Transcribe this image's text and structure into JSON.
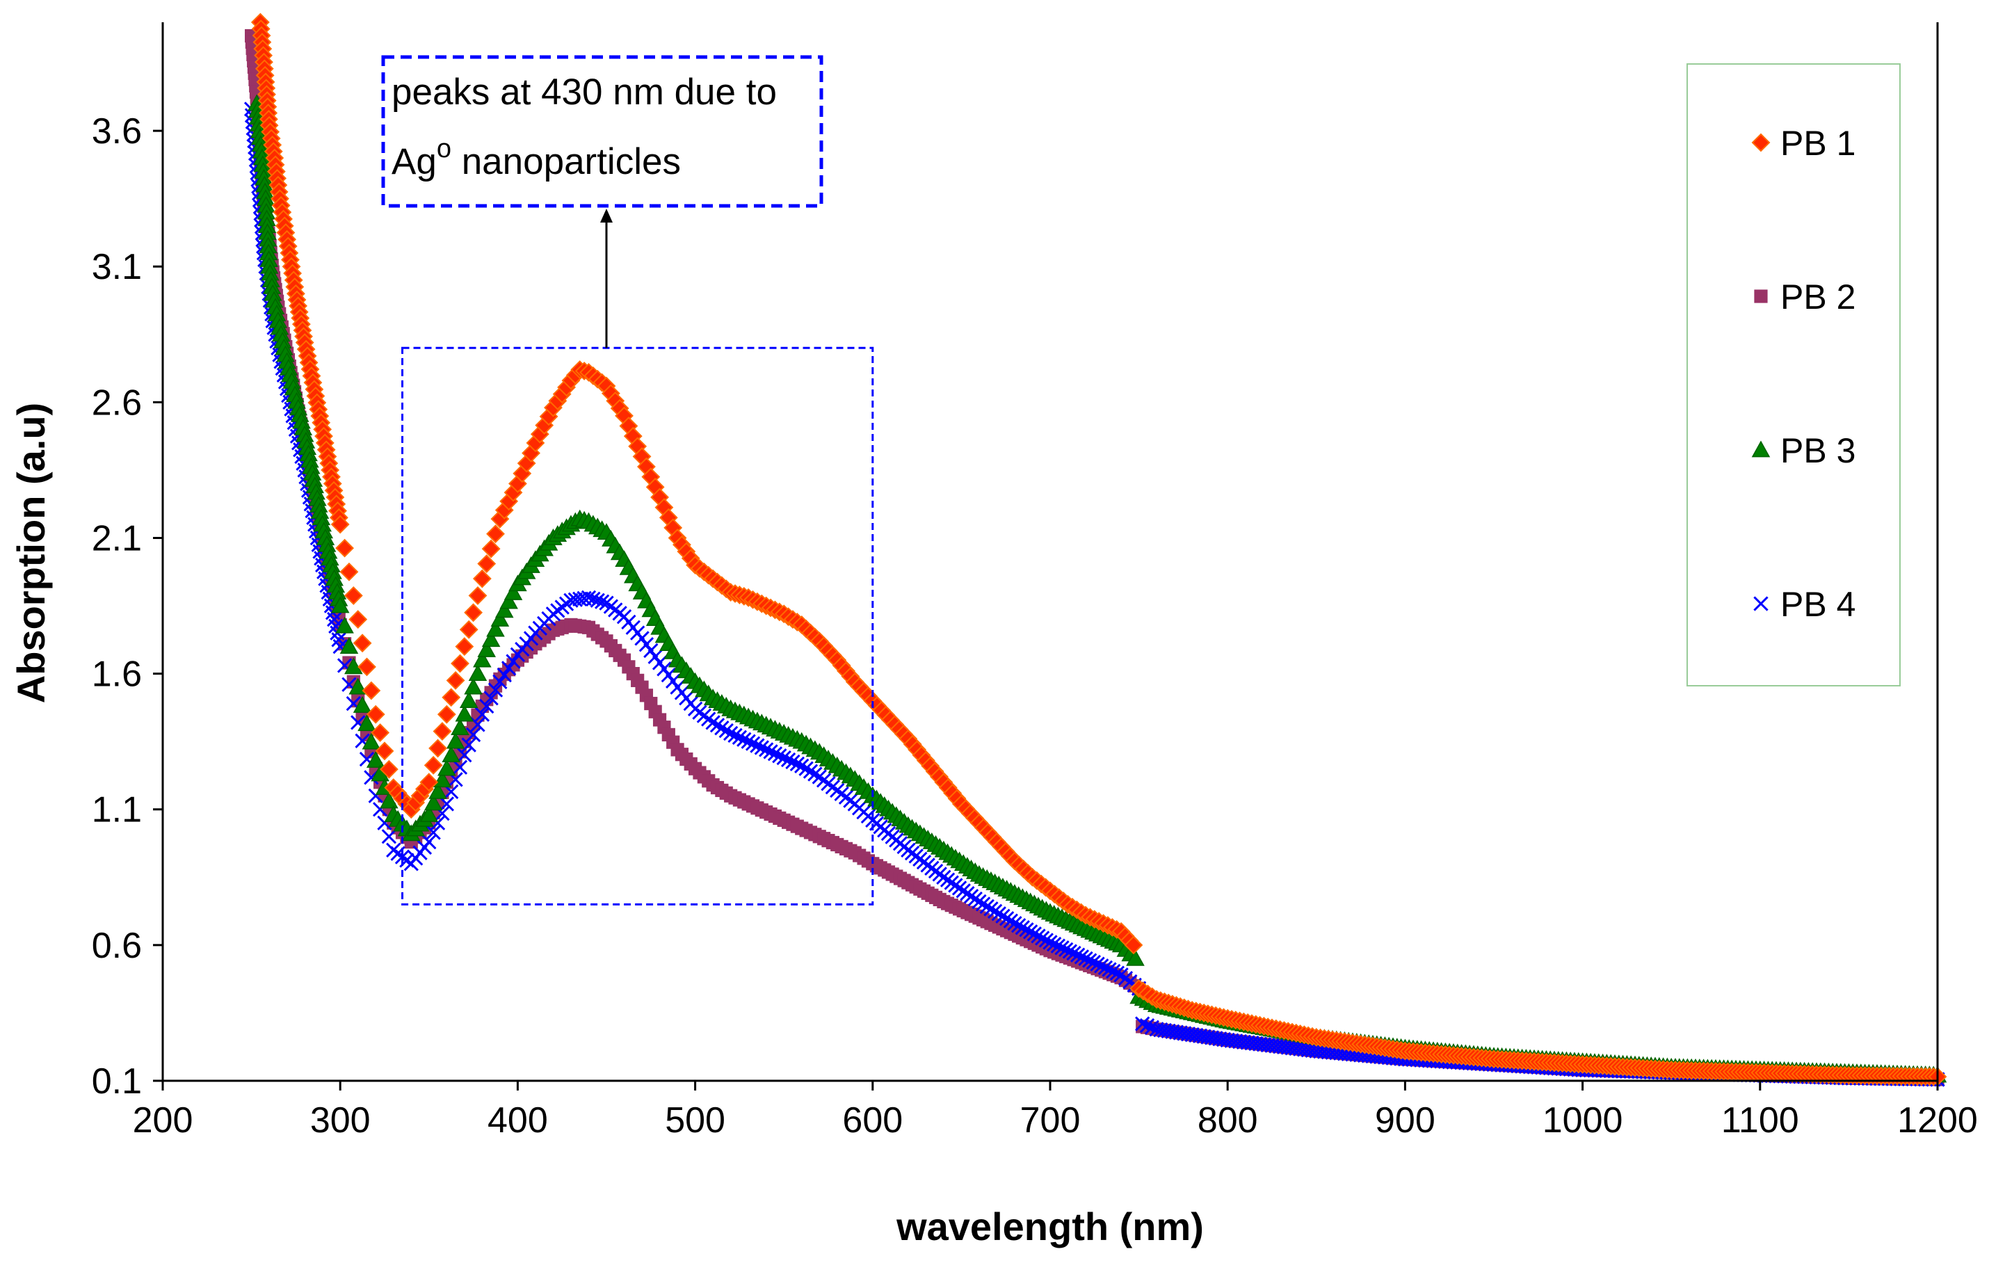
{
  "chart_data": {
    "type": "scatter",
    "title": "",
    "xlabel": "wavelength (nm)",
    "ylabel": "Absorption (a.u)",
    "xlim": [
      200,
      1200
    ],
    "ylim": [
      0.1,
      4.0
    ],
    "xticks": [
      200,
      300,
      400,
      500,
      600,
      700,
      800,
      900,
      1000,
      1100,
      1200
    ],
    "yticks": [
      0.1,
      0.6,
      1.1,
      1.6,
      2.1,
      2.6,
      3.1,
      3.6
    ],
    "grid": false,
    "legend_position": "top-right",
    "annotation": {
      "text_line1": "peaks at 430 nm due to",
      "text_line2_base": "Ag",
      "text_line2_sup": "o",
      "text_line2_rest": " nanoparticles",
      "region_x": [
        335,
        600
      ],
      "region_y": [
        0.75,
        2.8
      ],
      "arrow_x": 450
    },
    "series": [
      {
        "name": "PB 1",
        "marker": "diamond",
        "color": "#ff2a00",
        "stroke": "#ff6a00",
        "points": [
          [
            255,
            4.0
          ],
          [
            258,
            3.78
          ],
          [
            260,
            3.62
          ],
          [
            263,
            3.5
          ],
          [
            266,
            3.35
          ],
          [
            270,
            3.2
          ],
          [
            275,
            3.0
          ],
          [
            280,
            2.82
          ],
          [
            290,
            2.5
          ],
          [
            300,
            2.15
          ],
          [
            310,
            1.8
          ],
          [
            320,
            1.45
          ],
          [
            330,
            1.18
          ],
          [
            340,
            1.1
          ],
          [
            350,
            1.2
          ],
          [
            360,
            1.45
          ],
          [
            370,
            1.7
          ],
          [
            380,
            1.95
          ],
          [
            390,
            2.17
          ],
          [
            400,
            2.3
          ],
          [
            410,
            2.45
          ],
          [
            420,
            2.58
          ],
          [
            430,
            2.68
          ],
          [
            435,
            2.72
          ],
          [
            440,
            2.71
          ],
          [
            450,
            2.66
          ],
          [
            460,
            2.55
          ],
          [
            470,
            2.4
          ],
          [
            480,
            2.25
          ],
          [
            490,
            2.1
          ],
          [
            500,
            2.0
          ],
          [
            510,
            1.95
          ],
          [
            520,
            1.9
          ],
          [
            530,
            1.88
          ],
          [
            540,
            1.85
          ],
          [
            550,
            1.82
          ],
          [
            560,
            1.78
          ],
          [
            570,
            1.72
          ],
          [
            580,
            1.65
          ],
          [
            590,
            1.57
          ],
          [
            600,
            1.5
          ],
          [
            610,
            1.43
          ],
          [
            620,
            1.36
          ],
          [
            630,
            1.28
          ],
          [
            640,
            1.2
          ],
          [
            650,
            1.12
          ],
          [
            660,
            1.05
          ],
          [
            670,
            0.98
          ],
          [
            680,
            0.91
          ],
          [
            690,
            0.85
          ],
          [
            700,
            0.8
          ],
          [
            710,
            0.75
          ],
          [
            720,
            0.71
          ],
          [
            730,
            0.68
          ],
          [
            740,
            0.65
          ],
          [
            747,
            0.6
          ],
          [
            750,
            0.44
          ],
          [
            760,
            0.4
          ],
          [
            780,
            0.36
          ],
          [
            800,
            0.33
          ],
          [
            850,
            0.26
          ],
          [
            900,
            0.21
          ],
          [
            950,
            0.18
          ],
          [
            1000,
            0.16
          ],
          [
            1050,
            0.14
          ],
          [
            1100,
            0.13
          ],
          [
            1150,
            0.12
          ],
          [
            1200,
            0.115
          ]
        ]
      },
      {
        "name": "PB 2",
        "marker": "square",
        "color": "#993366",
        "stroke": "#993366",
        "points": [
          [
            250,
            3.95
          ],
          [
            253,
            3.72
          ],
          [
            255,
            3.5
          ],
          [
            257,
            3.33
          ],
          [
            260,
            3.2
          ],
          [
            262,
            3.08
          ],
          [
            265,
            2.95
          ],
          [
            270,
            2.78
          ],
          [
            280,
            2.45
          ],
          [
            290,
            2.1
          ],
          [
            300,
            1.78
          ],
          [
            310,
            1.5
          ],
          [
            320,
            1.25
          ],
          [
            330,
            1.05
          ],
          [
            340,
            0.98
          ],
          [
            350,
            1.05
          ],
          [
            360,
            1.2
          ],
          [
            370,
            1.35
          ],
          [
            380,
            1.48
          ],
          [
            390,
            1.58
          ],
          [
            400,
            1.65
          ],
          [
            410,
            1.71
          ],
          [
            420,
            1.76
          ],
          [
            430,
            1.78
          ],
          [
            440,
            1.77
          ],
          [
            450,
            1.72
          ],
          [
            460,
            1.65
          ],
          [
            470,
            1.55
          ],
          [
            480,
            1.43
          ],
          [
            490,
            1.32
          ],
          [
            500,
            1.25
          ],
          [
            510,
            1.19
          ],
          [
            520,
            1.15
          ],
          [
            530,
            1.12
          ],
          [
            540,
            1.09
          ],
          [
            550,
            1.06
          ],
          [
            560,
            1.03
          ],
          [
            570,
            1.0
          ],
          [
            580,
            0.97
          ],
          [
            590,
            0.94
          ],
          [
            600,
            0.9
          ],
          [
            620,
            0.83
          ],
          [
            640,
            0.76
          ],
          [
            660,
            0.7
          ],
          [
            680,
            0.64
          ],
          [
            700,
            0.58
          ],
          [
            720,
            0.53
          ],
          [
            740,
            0.48
          ],
          [
            750,
            0.44
          ],
          [
            752,
            0.3
          ],
          [
            760,
            0.29
          ],
          [
            780,
            0.27
          ],
          [
            800,
            0.25
          ],
          [
            850,
            0.21
          ],
          [
            900,
            0.18
          ],
          [
            950,
            0.16
          ],
          [
            1000,
            0.14
          ],
          [
            1050,
            0.13
          ],
          [
            1100,
            0.12
          ],
          [
            1150,
            0.11
          ],
          [
            1200,
            0.105
          ]
        ]
      },
      {
        "name": "PB 3",
        "marker": "triangle",
        "color": "#008000",
        "stroke": "#006400",
        "points": [
          [
            253,
            3.7
          ],
          [
            256,
            3.5
          ],
          [
            258,
            3.35
          ],
          [
            260,
            3.1
          ],
          [
            262,
            3.0
          ],
          [
            265,
            2.9
          ],
          [
            270,
            2.75
          ],
          [
            280,
            2.48
          ],
          [
            290,
            2.15
          ],
          [
            300,
            1.85
          ],
          [
            310,
            1.55
          ],
          [
            320,
            1.28
          ],
          [
            330,
            1.08
          ],
          [
            340,
            1.01
          ],
          [
            350,
            1.08
          ],
          [
            360,
            1.25
          ],
          [
            370,
            1.45
          ],
          [
            380,
            1.65
          ],
          [
            390,
            1.8
          ],
          [
            400,
            1.93
          ],
          [
            410,
            2.02
          ],
          [
            420,
            2.1
          ],
          [
            430,
            2.15
          ],
          [
            435,
            2.17
          ],
          [
            440,
            2.16
          ],
          [
            450,
            2.12
          ],
          [
            460,
            2.02
          ],
          [
            470,
            1.9
          ],
          [
            480,
            1.77
          ],
          [
            490,
            1.65
          ],
          [
            500,
            1.57
          ],
          [
            510,
            1.51
          ],
          [
            520,
            1.47
          ],
          [
            530,
            1.44
          ],
          [
            540,
            1.41
          ],
          [
            550,
            1.38
          ],
          [
            560,
            1.35
          ],
          [
            570,
            1.31
          ],
          [
            580,
            1.26
          ],
          [
            590,
            1.21
          ],
          [
            600,
            1.15
          ],
          [
            620,
            1.04
          ],
          [
            640,
            0.95
          ],
          [
            660,
            0.86
          ],
          [
            680,
            0.79
          ],
          [
            700,
            0.72
          ],
          [
            720,
            0.66
          ],
          [
            740,
            0.6
          ],
          [
            748,
            0.55
          ],
          [
            750,
            0.41
          ],
          [
            760,
            0.38
          ],
          [
            780,
            0.35
          ],
          [
            800,
            0.32
          ],
          [
            850,
            0.26
          ],
          [
            900,
            0.22
          ],
          [
            950,
            0.19
          ],
          [
            1000,
            0.17
          ],
          [
            1050,
            0.15
          ],
          [
            1100,
            0.14
          ],
          [
            1150,
            0.13
          ],
          [
            1200,
            0.12
          ]
        ]
      },
      {
        "name": "PB 4",
        "marker": "x",
        "color": "#0000ff",
        "stroke": "#0000ff",
        "points": [
          [
            250,
            3.68
          ],
          [
            253,
            3.47
          ],
          [
            255,
            3.32
          ],
          [
            257,
            3.15
          ],
          [
            260,
            3.0
          ],
          [
            262,
            2.9
          ],
          [
            265,
            2.8
          ],
          [
            270,
            2.65
          ],
          [
            280,
            2.35
          ],
          [
            290,
            2.0
          ],
          [
            300,
            1.7
          ],
          [
            310,
            1.42
          ],
          [
            320,
            1.15
          ],
          [
            330,
            0.95
          ],
          [
            340,
            0.9
          ],
          [
            350,
            0.98
          ],
          [
            360,
            1.12
          ],
          [
            370,
            1.3
          ],
          [
            380,
            1.45
          ],
          [
            390,
            1.57
          ],
          [
            400,
            1.67
          ],
          [
            410,
            1.75
          ],
          [
            420,
            1.82
          ],
          [
            430,
            1.87
          ],
          [
            440,
            1.88
          ],
          [
            450,
            1.86
          ],
          [
            460,
            1.81
          ],
          [
            470,
            1.73
          ],
          [
            480,
            1.64
          ],
          [
            490,
            1.55
          ],
          [
            500,
            1.47
          ],
          [
            510,
            1.42
          ],
          [
            520,
            1.38
          ],
          [
            530,
            1.35
          ],
          [
            540,
            1.32
          ],
          [
            550,
            1.29
          ],
          [
            560,
            1.26
          ],
          [
            570,
            1.22
          ],
          [
            580,
            1.17
          ],
          [
            590,
            1.12
          ],
          [
            600,
            1.06
          ],
          [
            620,
            0.95
          ],
          [
            640,
            0.85
          ],
          [
            660,
            0.76
          ],
          [
            680,
            0.68
          ],
          [
            700,
            0.61
          ],
          [
            720,
            0.55
          ],
          [
            740,
            0.49
          ],
          [
            750,
            0.44
          ],
          [
            752,
            0.31
          ],
          [
            760,
            0.29
          ],
          [
            780,
            0.27
          ],
          [
            800,
            0.25
          ],
          [
            850,
            0.21
          ],
          [
            900,
            0.18
          ],
          [
            950,
            0.16
          ],
          [
            1000,
            0.14
          ],
          [
            1050,
            0.13
          ],
          [
            1100,
            0.12
          ],
          [
            1150,
            0.11
          ],
          [
            1200,
            0.105
          ]
        ]
      }
    ]
  }
}
